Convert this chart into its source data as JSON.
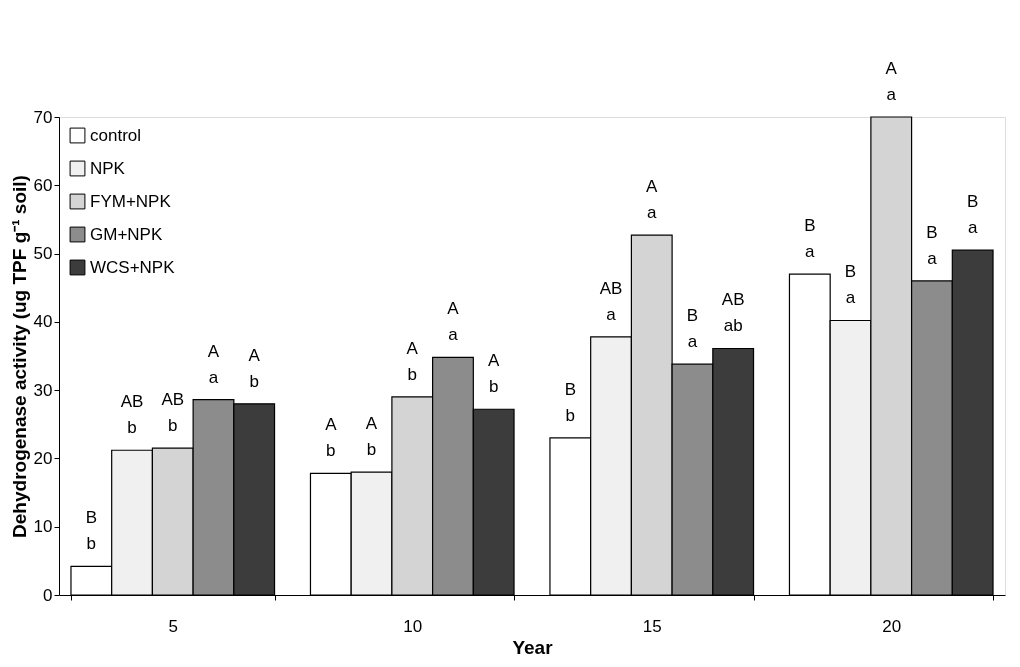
{
  "chart_data": {
    "type": "bar",
    "xlabel": "Year",
    "ylabel": "Dehydrogenase activity (ug TPF g⁻¹ soil)",
    "categories": [
      "5",
      "10",
      "15",
      "20"
    ],
    "series": [
      {
        "name": "control",
        "color": "#ffffff",
        "values": [
          4.2,
          17.8,
          23.0,
          47.0
        ],
        "value_labels": [
          "B\nb",
          "A\nb",
          "B\nb",
          "B\na"
        ]
      },
      {
        "name": "NPK",
        "color": "#f0f0f0",
        "values": [
          21.2,
          18.0,
          37.8,
          40.2
        ],
        "value_labels": [
          "AB\nb",
          "A\nb",
          "AB\na",
          "B\na"
        ]
      },
      {
        "name": "FYM+NPK",
        "color": "#d4d4d4",
        "values": [
          21.5,
          29.0,
          52.7,
          70.0
        ],
        "value_labels": [
          "AB\nb",
          "A\nb",
          "A\na",
          "A\na"
        ]
      },
      {
        "name": "GM+NPK",
        "color": "#8c8c8c",
        "values": [
          28.6,
          34.8,
          33.8,
          46.0
        ],
        "value_labels": [
          "A\na",
          "A\na",
          "B\na",
          "B\na"
        ]
      },
      {
        "name": "WCS+NPK",
        "color": "#3c3c3c",
        "values": [
          28.0,
          27.2,
          36.1,
          50.5
        ],
        "value_labels": [
          "A\nb",
          "A\nb",
          "AB\nab",
          "B\na"
        ]
      }
    ],
    "ylim": [
      0,
      70
    ],
    "yticks": [
      0,
      10,
      20,
      30,
      40,
      50,
      60,
      70
    ],
    "grid": false,
    "legend": "top left"
  }
}
